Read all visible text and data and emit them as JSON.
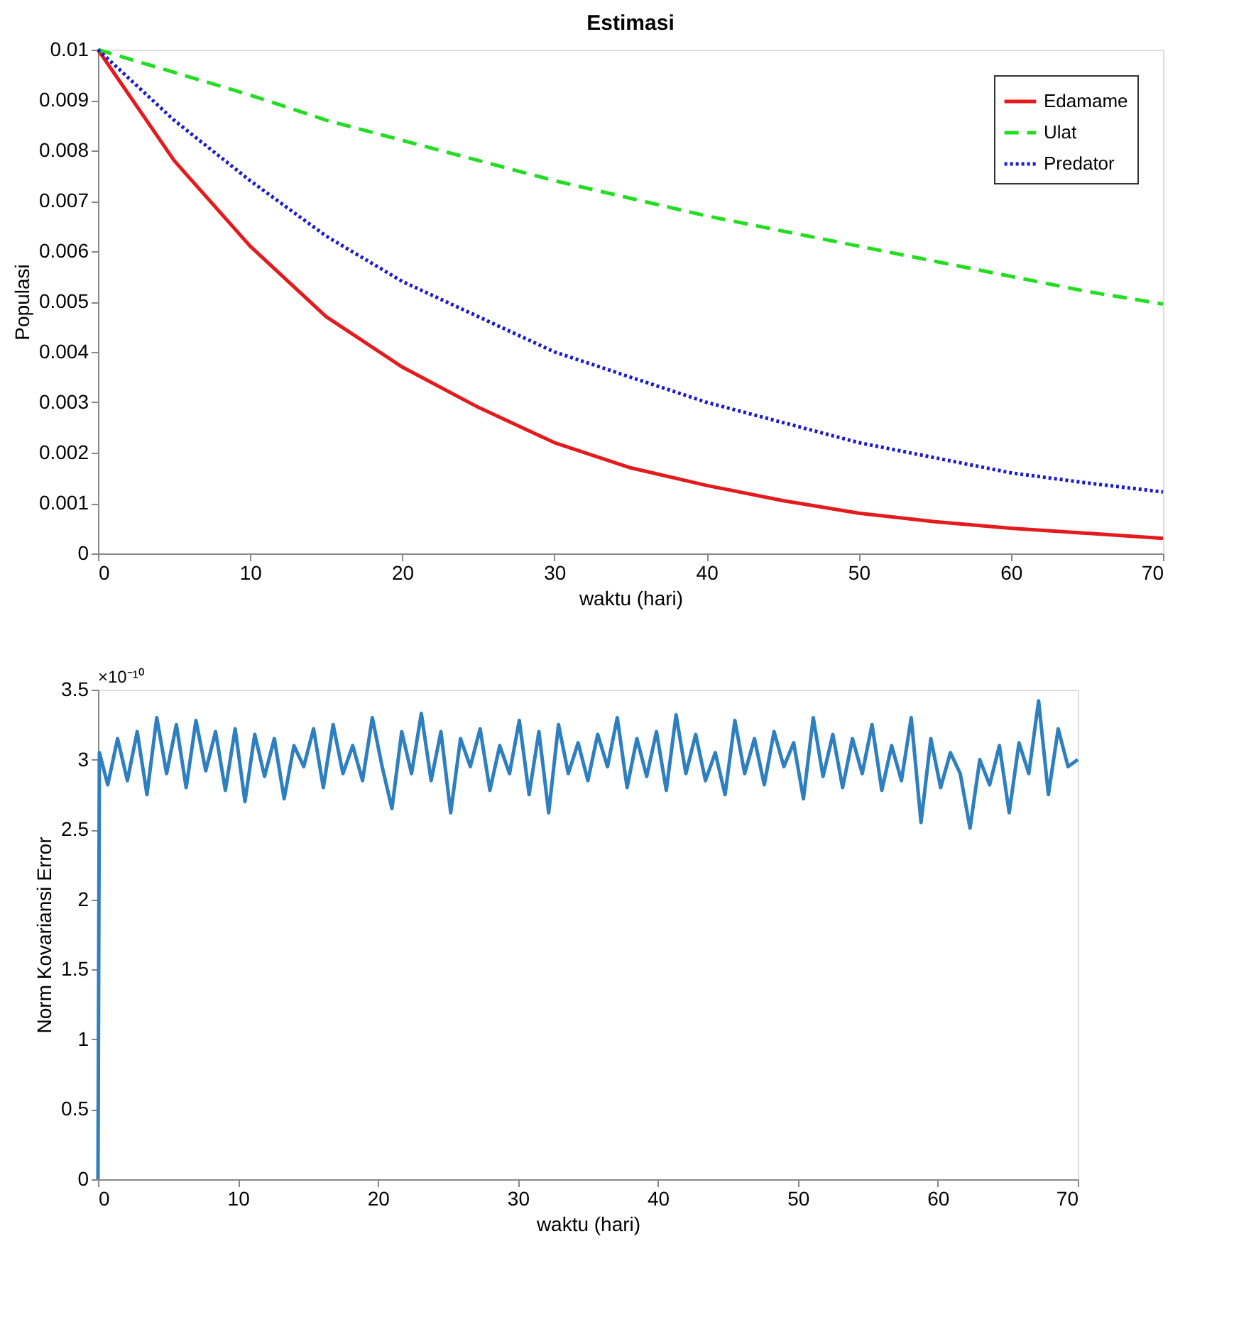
{
  "chart_data": [
    {
      "type": "line",
      "title": "Estimasi",
      "xlabel": "waktu (hari)",
      "ylabel": "Populasi",
      "x": [
        0,
        5,
        10,
        15,
        20,
        25,
        30,
        35,
        40,
        45,
        50,
        55,
        60,
        65,
        70
      ],
      "series": [
        {
          "name": "Edamame",
          "color": "#e41a1c",
          "line_style": "solid",
          "values": [
            0.01,
            0.0078,
            0.0061,
            0.0047,
            0.0037,
            0.0029,
            0.0022,
            0.0017,
            0.00135,
            0.00105,
            0.0008,
            0.00063,
            0.0005,
            0.0004,
            0.0003
          ]
        },
        {
          "name": "Ulat",
          "color": "#22dd22",
          "line_style": "dashed",
          "values": [
            0.01,
            0.00955,
            0.0091,
            0.0086,
            0.0082,
            0.0078,
            0.0074,
            0.00705,
            0.0067,
            0.0064,
            0.0061,
            0.0058,
            0.0055,
            0.0052,
            0.00495
          ]
        },
        {
          "name": "Predator",
          "color": "#1a1acc",
          "line_style": "dotted",
          "values": [
            0.01,
            0.0086,
            0.0074,
            0.0063,
            0.0054,
            0.0047,
            0.004,
            0.0035,
            0.003,
            0.0026,
            0.0022,
            0.0019,
            0.0016,
            0.0014,
            0.00122
          ]
        }
      ],
      "xlim": [
        0,
        70
      ],
      "xticks": [
        0,
        10,
        20,
        30,
        40,
        50,
        60,
        70
      ],
      "ylim": [
        0,
        0.01
      ],
      "yticks": [
        0,
        0.001,
        0.002,
        0.003,
        0.004,
        0.005,
        0.006,
        0.007,
        0.008,
        0.009,
        0.01
      ],
      "legend": "top right",
      "grid": false,
      "marker": "none"
    },
    {
      "type": "line",
      "xlabel": "waktu (hari)",
      "ylabel": "Norm Kovariansi Error",
      "annotations": [
        "×10⁻¹⁰"
      ],
      "x": [
        0,
        0.1,
        0.7,
        1.4,
        2.1,
        2.8,
        3.5,
        4.2,
        4.9,
        5.6,
        6.3,
        7.0,
        7.7,
        8.4,
        9.1,
        9.8,
        10.5,
        11.2,
        11.9,
        12.6,
        13.3,
        14.0,
        14.7,
        15.4,
        16.1,
        16.8,
        17.5,
        18.2,
        18.9,
        19.6,
        20.3,
        21.0,
        21.7,
        22.4,
        23.1,
        23.8,
        24.5,
        25.2,
        25.9,
        26.6,
        27.3,
        28.0,
        28.7,
        29.4,
        30.1,
        30.8,
        31.5,
        32.2,
        32.9,
        33.6,
        34.3,
        35.0,
        35.7,
        36.4,
        37.1,
        37.8,
        38.5,
        39.2,
        39.9,
        40.6,
        41.3,
        42.0,
        42.7,
        43.4,
        44.1,
        44.8,
        45.5,
        46.2,
        46.9,
        47.6,
        48.3,
        49.0,
        49.7,
        50.4,
        51.1,
        51.8,
        52.5,
        53.2,
        53.9,
        54.6,
        55.3,
        56.0,
        56.7,
        57.4,
        58.1,
        58.8,
        59.5,
        60.2,
        60.9,
        61.6,
        62.3,
        63.0,
        63.7,
        64.4,
        65.1,
        65.8,
        66.5,
        67.2,
        67.9,
        68.6,
        69.3,
        70
      ],
      "series": [
        {
          "color": "#2e7fbf",
          "values": [
            0,
            3.05,
            2.82,
            3.15,
            2.85,
            3.2,
            2.75,
            3.3,
            2.9,
            3.25,
            2.8,
            3.28,
            2.92,
            3.2,
            2.78,
            3.22,
            2.7,
            3.18,
            2.88,
            3.15,
            2.72,
            3.1,
            2.95,
            3.22,
            2.8,
            3.25,
            2.9,
            3.1,
            2.85,
            3.3,
            2.95,
            2.65,
            3.2,
            2.9,
            3.33,
            2.85,
            3.2,
            2.62,
            3.15,
            2.95,
            3.22,
            2.78,
            3.1,
            2.9,
            3.28,
            2.75,
            3.2,
            2.62,
            3.25,
            2.9,
            3.12,
            2.85,
            3.18,
            2.95,
            3.3,
            2.8,
            3.15,
            2.88,
            3.2,
            2.78,
            3.32,
            2.9,
            3.18,
            2.85,
            3.05,
            2.75,
            3.28,
            2.9,
            3.15,
            2.82,
            3.2,
            2.95,
            3.12,
            2.72,
            3.3,
            2.88,
            3.18,
            2.8,
            3.15,
            2.9,
            3.25,
            2.78,
            3.1,
            2.85,
            3.3,
            2.55,
            3.15,
            2.8,
            3.05,
            2.9,
            2.51,
            3.0,
            2.82,
            3.1,
            2.62,
            3.12,
            2.9,
            3.42,
            2.75,
            3.22,
            2.95,
            3.0
          ]
        }
      ],
      "xlim": [
        0,
        70
      ],
      "xticks": [
        0,
        10,
        20,
        30,
        40,
        50,
        60,
        70
      ],
      "ylim": [
        0,
        3.5
      ],
      "yticks": [
        0,
        0.5,
        1,
        1.5,
        2,
        2.5,
        3,
        3.5
      ],
      "legend": false,
      "grid": false,
      "marker": "none"
    }
  ]
}
